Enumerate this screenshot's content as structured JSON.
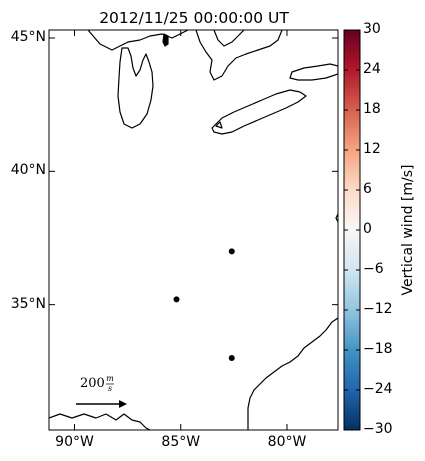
{
  "title": "2012/11/25 00:00:00 UT",
  "map": {
    "lat_ticks": [
      {
        "label": "45°N",
        "lat": 45
      },
      {
        "label": "40°N",
        "lat": 40
      },
      {
        "label": "35°N",
        "lat": 35
      }
    ],
    "lon_ticks": [
      {
        "label": "90°W",
        "lon": -90
      },
      {
        "label": "85°W",
        "lon": -85
      },
      {
        "label": "80°W",
        "lon": -80
      }
    ],
    "lon_range": [
      -91.2,
      -77.6
    ],
    "lat_range": [
      30.3,
      45.3
    ],
    "points": [
      {
        "lon": -82.6,
        "lat": 37.0
      },
      {
        "lon": -85.2,
        "lat": 35.2
      },
      {
        "lon": -82.6,
        "lat": 33.0
      }
    ],
    "reference_vector": {
      "label_number": "200",
      "label_unit_num": "m",
      "label_unit_den": "s"
    }
  },
  "colorbar": {
    "label": "Vertical wind [m/s]",
    "min": -30,
    "max": 30,
    "ticks": [
      "30",
      "24",
      "18",
      "12",
      "6",
      "0",
      "−6",
      "−12",
      "−18",
      "−24",
      "−30"
    ],
    "colors": [
      "#67001f",
      "#b2182b",
      "#d6604d",
      "#f4a582",
      "#fddbc7",
      "#f7f7f7",
      "#d1e5f0",
      "#92c5de",
      "#4393c3",
      "#2166ac",
      "#053061"
    ]
  }
}
